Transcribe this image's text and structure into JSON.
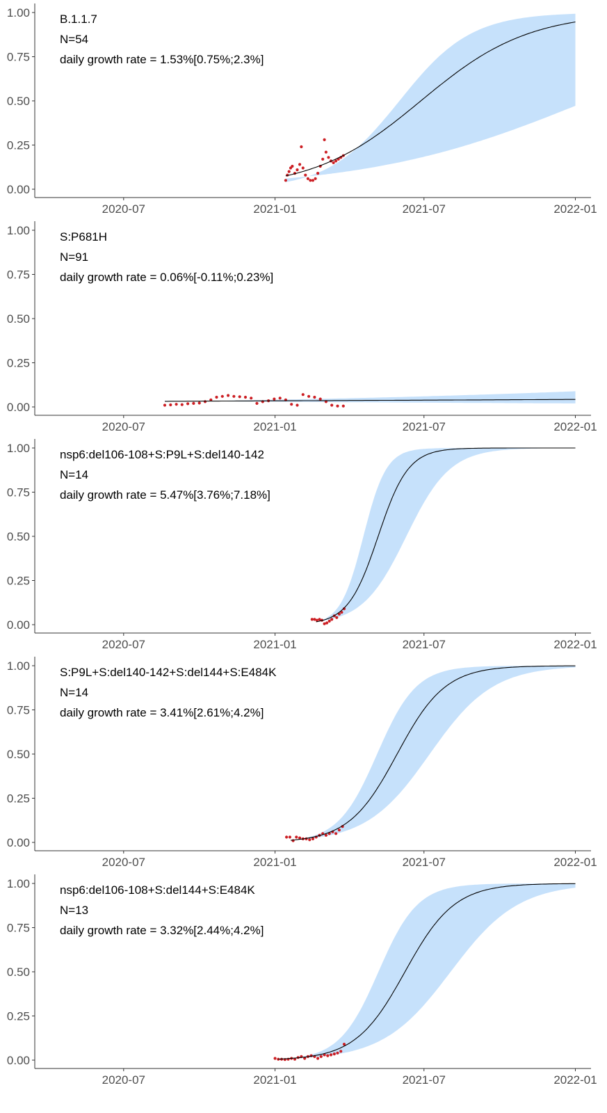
{
  "chart_data": [
    {
      "type": "line",
      "annotations": [
        "B.1.1.7",
        "N=54",
        "daily growth rate = 1.53%[0.75%;2.3%]"
      ],
      "growth_rate": 0.0153,
      "ci": [
        0.0075,
        0.023
      ],
      "fit_anchor": {
        "date": "2021-01-14",
        "value": 0.075
      },
      "band_upper_anchor": {
        "date": "2021-01-14",
        "value": 0.04
      },
      "band_lower_anchor": {
        "date": "2021-01-14",
        "value": 0.06
      },
      "points": [
        [
          "2021-01-14",
          0.05
        ],
        [
          "2021-01-16",
          0.08
        ],
        [
          "2021-01-18",
          0.1
        ],
        [
          "2021-01-20",
          0.12
        ],
        [
          "2021-01-22",
          0.13
        ],
        [
          "2021-01-25",
          0.09
        ],
        [
          "2021-01-28",
          0.11
        ],
        [
          "2021-01-31",
          0.14
        ],
        [
          "2021-02-02",
          0.24
        ],
        [
          "2021-02-04",
          0.12
        ],
        [
          "2021-02-07",
          0.08
        ],
        [
          "2021-02-10",
          0.06
        ],
        [
          "2021-02-13",
          0.05
        ],
        [
          "2021-02-16",
          0.05
        ],
        [
          "2021-02-19",
          0.06
        ],
        [
          "2021-02-22",
          0.09
        ],
        [
          "2021-02-25",
          0.13
        ],
        [
          "2021-02-28",
          0.17
        ],
        [
          "2021-03-02",
          0.28
        ],
        [
          "2021-03-04",
          0.21
        ],
        [
          "2021-03-07",
          0.18
        ],
        [
          "2021-03-10",
          0.16
        ],
        [
          "2021-03-13",
          0.15
        ],
        [
          "2021-03-16",
          0.16
        ],
        [
          "2021-03-19",
          0.17
        ],
        [
          "2021-03-22",
          0.18
        ],
        [
          "2021-03-25",
          0.19
        ]
      ],
      "ylim": [
        0,
        1
      ]
    },
    {
      "type": "line",
      "annotations": [
        "S:P681H",
        "N=91",
        "daily growth rate = 0.06%[-0.11%;0.23%]"
      ],
      "growth_rate": 0.0006,
      "ci": [
        -0.0011,
        0.0023
      ],
      "fit_anchor": {
        "date": "2020-08-20",
        "value": 0.032
      },
      "band_upper_anchor": {
        "date": "2020-08-20",
        "value": 0.03
      },
      "band_lower_anchor": {
        "date": "2020-08-20",
        "value": 0.034
      },
      "points": [
        [
          "2020-08-20",
          0.01
        ],
        [
          "2020-08-27",
          0.012
        ],
        [
          "2020-09-03",
          0.015
        ],
        [
          "2020-09-10",
          0.013
        ],
        [
          "2020-09-17",
          0.018
        ],
        [
          "2020-09-24",
          0.02
        ],
        [
          "2020-10-01",
          0.022
        ],
        [
          "2020-10-08",
          0.03
        ],
        [
          "2020-10-15",
          0.04
        ],
        [
          "2020-10-22",
          0.055
        ],
        [
          "2020-10-29",
          0.06
        ],
        [
          "2020-11-05",
          0.065
        ],
        [
          "2020-11-12",
          0.06
        ],
        [
          "2020-11-19",
          0.058
        ],
        [
          "2020-11-26",
          0.055
        ],
        [
          "2020-12-03",
          0.05
        ],
        [
          "2020-12-10",
          0.02
        ],
        [
          "2020-12-17",
          0.03
        ],
        [
          "2020-12-24",
          0.035
        ],
        [
          "2020-12-31",
          0.045
        ],
        [
          "2021-01-07",
          0.05
        ],
        [
          "2021-01-14",
          0.04
        ],
        [
          "2021-01-21",
          0.015
        ],
        [
          "2021-01-28",
          0.01
        ],
        [
          "2021-02-04",
          0.07
        ],
        [
          "2021-02-11",
          0.06
        ],
        [
          "2021-02-18",
          0.055
        ],
        [
          "2021-02-25",
          0.045
        ],
        [
          "2021-03-04",
          0.03
        ],
        [
          "2021-03-11",
          0.01
        ],
        [
          "2021-03-18",
          0.005
        ],
        [
          "2021-03-25",
          0.005
        ]
      ],
      "ylim": [
        0,
        1
      ]
    },
    {
      "type": "line",
      "annotations": [
        "nsp6:del106-108+S:P9L+S:del140-142",
        "N=14",
        "daily growth rate = 5.47%[3.76%;7.18%]"
      ],
      "growth_rate": 0.0547,
      "ci": [
        0.0376,
        0.0718
      ],
      "fit_anchor": {
        "date": "2021-02-20",
        "value": 0.016
      },
      "band_upper_anchor": {
        "date": "2021-02-20",
        "value": 0.016
      },
      "band_lower_anchor": {
        "date": "2021-02-20",
        "value": 0.016
      },
      "points": [
        [
          "2021-02-15",
          0.03
        ],
        [
          "2021-02-18",
          0.03
        ],
        [
          "2021-02-21",
          0.025
        ],
        [
          "2021-02-24",
          0.03
        ],
        [
          "2021-02-27",
          0.025
        ],
        [
          "2021-03-02",
          0.005
        ],
        [
          "2021-03-05",
          0.01
        ],
        [
          "2021-03-08",
          0.02
        ],
        [
          "2021-03-11",
          0.03
        ],
        [
          "2021-03-14",
          0.05
        ],
        [
          "2021-03-17",
          0.04
        ],
        [
          "2021-03-20",
          0.06
        ],
        [
          "2021-03-23",
          0.07
        ],
        [
          "2021-03-26",
          0.09
        ]
      ],
      "ylim": [
        0,
        1
      ]
    },
    {
      "type": "line",
      "annotations": [
        "S:P9L+S:del140-142+S:del144+S:E484K",
        "N=14",
        "daily growth rate = 3.41%[2.61%;4.2%]"
      ],
      "growth_rate": 0.0341,
      "ci": [
        0.0261,
        0.042
      ],
      "fit_anchor": {
        "date": "2021-01-20",
        "value": 0.012
      },
      "band_upper_anchor": {
        "date": "2021-01-20",
        "value": 0.012
      },
      "band_lower_anchor": {
        "date": "2021-01-20",
        "value": 0.012
      },
      "points": [
        [
          "2021-01-15",
          0.03
        ],
        [
          "2021-01-19",
          0.03
        ],
        [
          "2021-01-23",
          0.01
        ],
        [
          "2021-01-27",
          0.03
        ],
        [
          "2021-01-31",
          0.025
        ],
        [
          "2021-02-04",
          0.02
        ],
        [
          "2021-02-08",
          0.02
        ],
        [
          "2021-02-12",
          0.015
        ],
        [
          "2021-02-16",
          0.02
        ],
        [
          "2021-02-20",
          0.03
        ],
        [
          "2021-02-24",
          0.04
        ],
        [
          "2021-02-28",
          0.05
        ],
        [
          "2021-03-04",
          0.04
        ],
        [
          "2021-03-08",
          0.05
        ],
        [
          "2021-03-12",
          0.06
        ],
        [
          "2021-03-16",
          0.05
        ],
        [
          "2021-03-20",
          0.07
        ],
        [
          "2021-03-24",
          0.09
        ]
      ],
      "ylim": [
        0,
        1
      ]
    },
    {
      "type": "line",
      "annotations": [
        "nsp6:del106-108+S:del144+S:E484K",
        "N=13",
        "daily growth rate = 3.32%[2.44%;4.2%]"
      ],
      "growth_rate": 0.0332,
      "ci": [
        0.0244,
        0.042
      ],
      "fit_anchor": {
        "date": "2021-01-05",
        "value": 0.006
      },
      "band_upper_anchor": {
        "date": "2021-01-05",
        "value": 0.006
      },
      "band_lower_anchor": {
        "date": "2021-01-05",
        "value": 0.006
      },
      "points": [
        [
          "2021-01-01",
          0.01
        ],
        [
          "2021-01-05",
          0.005
        ],
        [
          "2021-01-09",
          0.005
        ],
        [
          "2021-01-13",
          0.003
        ],
        [
          "2021-01-17",
          0.005
        ],
        [
          "2021-01-21",
          0.01
        ],
        [
          "2021-01-25",
          0.005
        ],
        [
          "2021-01-29",
          0.015
        ],
        [
          "2021-02-02",
          0.02
        ],
        [
          "2021-02-06",
          0.01
        ],
        [
          "2021-02-10",
          0.02
        ],
        [
          "2021-02-14",
          0.025
        ],
        [
          "2021-02-18",
          0.02
        ],
        [
          "2021-02-22",
          0.01
        ],
        [
          "2021-02-26",
          0.02
        ],
        [
          "2021-03-02",
          0.03
        ],
        [
          "2021-03-06",
          0.025
        ],
        [
          "2021-03-10",
          0.03
        ],
        [
          "2021-03-14",
          0.035
        ],
        [
          "2021-03-18",
          0.04
        ],
        [
          "2021-03-22",
          0.05
        ],
        [
          "2021-03-26",
          0.09
        ]
      ],
      "ylim": [
        0,
        1
      ]
    }
  ],
  "axes": {
    "x_ticks": [
      "2020-07",
      "2021-01",
      "2021-07",
      "2022-01"
    ],
    "y_ticks": [
      "0.00",
      "0.25",
      "0.50",
      "0.75",
      "1.00"
    ],
    "xlim": [
      "2020-03-15",
      "2022-01-20"
    ],
    "fit_end": "2022-01-01"
  },
  "colors": {
    "band": "#c6e1fb",
    "fit_line": "#000000",
    "points": "#cc1f24",
    "axis": "#333333",
    "tick_label": "#4d4d4d"
  }
}
